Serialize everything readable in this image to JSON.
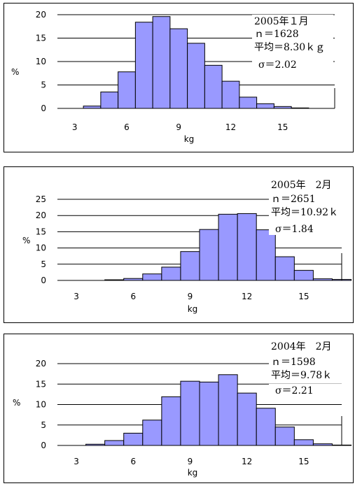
{
  "chart_data": [
    {
      "type": "bar",
      "ylabel": "%",
      "xlabel": "kg",
      "ylim": [
        0,
        20
      ],
      "yticks": [
        0,
        5,
        10,
        15,
        20
      ],
      "xticks": [
        3,
        6,
        9,
        12,
        15
      ],
      "xlim": [
        2,
        18
      ],
      "bin_start": 3.5,
      "bin_width": 1,
      "values": [
        0.5,
        3.5,
        7.8,
        18.4,
        19.6,
        17.0,
        13.9,
        9.2,
        5.8,
        2.4,
        1.0,
        0.4,
        0.1
      ],
      "colors": {
        "bar": "#9999ff",
        "edge": "#000000"
      },
      "annotations": [
        "2005年１月",
        "ｎ＝1628",
        "平均＝8.30ｋｇ",
        "σ＝2.02"
      ]
    },
    {
      "type": "bar",
      "ylabel": "%",
      "xlabel": "kg",
      "ylim": [
        0,
        25
      ],
      "yticks": [
        0,
        5,
        10,
        15,
        20,
        25
      ],
      "xticks": [
        3,
        6,
        9,
        12,
        15
      ],
      "xlim": [
        2,
        17
      ],
      "bin_start": 2.5,
      "bin_width": 1,
      "values": [
        0,
        0,
        0.2,
        0.6,
        2.0,
        4.1,
        8.9,
        15.7,
        20.4,
        20.6,
        15.6,
        7.3,
        3.1,
        0.5,
        0.3
      ],
      "colors": {
        "bar": "#9999ff",
        "edge": "#000000"
      },
      "annotations": [
        "2005年　2月",
        "ｎ＝2651",
        "平均＝10.92ｋ",
        "σ＝1.84"
      ]
    },
    {
      "type": "bar",
      "ylabel": "%",
      "xlabel": "kg",
      "ylim": [
        0,
        20
      ],
      "yticks": [
        0,
        5,
        10,
        15,
        20
      ],
      "xticks": [
        3,
        6,
        9,
        12,
        15
      ],
      "xlim": [
        2,
        17
      ],
      "bin_start": 3.5,
      "bin_width": 1,
      "values": [
        0.3,
        1.2,
        3.0,
        6.2,
        11.9,
        15.7,
        15.5,
        17.3,
        12.8,
        9.1,
        4.5,
        1.4,
        0.4,
        0.1
      ],
      "colors": {
        "bar": "#9999ff",
        "edge": "#000000"
      },
      "annotations": [
        "2004年　2月",
        "ｎ＝1598",
        "平均＝9.78ｋ",
        "σ＝2.21"
      ]
    }
  ]
}
